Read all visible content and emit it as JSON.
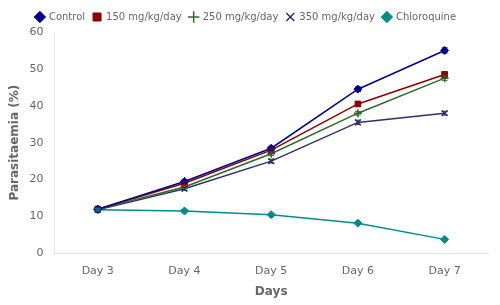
{
  "chart_data": {
    "type": "line",
    "x_label": "Days",
    "y_label": "Parasitaemia (%)",
    "categories": [
      "Day 3",
      "Day 4",
      "Day 5",
      "Day 6",
      "Day 7"
    ],
    "series": [
      {
        "name": "Control",
        "color": "#00008B",
        "marker": "diamond",
        "values": [
          12.0,
          19.5,
          28.5,
          44.5,
          55.0
        ],
        "errors": [
          0.3,
          0.4,
          0.5,
          0.6,
          0.7
        ]
      },
      {
        "name": "150 mg/kg/day",
        "color": "#8B0000",
        "marker": "square",
        "values": [
          12.0,
          19.0,
          28.0,
          40.5,
          48.5
        ],
        "errors": [
          0.3,
          0.4,
          0.5,
          0.6,
          0.5
        ]
      },
      {
        "name": "250 mg/kg/day",
        "color": "#2d6a2d",
        "marker": "plus",
        "values": [
          12.0,
          18.0,
          27.0,
          38.0,
          47.5
        ],
        "errors": [
          0.3,
          0.4,
          0.5,
          0.5,
          0.6
        ]
      },
      {
        "name": "350 mg/kg/day",
        "color": "#2F2F6B",
        "marker": "x",
        "values": [
          11.8,
          17.5,
          25.0,
          35.5,
          38.0
        ],
        "errors": [
          0.3,
          0.4,
          0.5,
          0.6,
          0.5
        ]
      },
      {
        "name": "Chloroquine",
        "color": "#008b8b",
        "marker": "diamond",
        "values": [
          11.8,
          11.5,
          10.5,
          8.2,
          3.8
        ],
        "errors": [
          0.3,
          0.3,
          0.3,
          0.3,
          0.3
        ]
      }
    ],
    "ylim": [
      0,
      60
    ],
    "yticks": [
      0,
      10,
      20,
      30,
      40,
      50,
      60
    ],
    "grid": false,
    "legend": "top"
  }
}
